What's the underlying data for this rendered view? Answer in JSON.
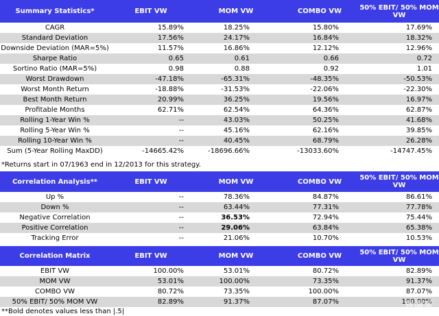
{
  "summary": {
    "headers": [
      "Summary Statistics*",
      "EBIT VW",
      "MOM VW",
      "COMBO VW",
      "50% EBIT/ 50% MOM VW"
    ],
    "rows": [
      {
        "label": "CAGR",
        "v": [
          "15.89%",
          "18.25%",
          "15.80%",
          "17.69%"
        ]
      },
      {
        "label": "Standard Deviation",
        "v": [
          "17.56%",
          "24.17%",
          "16.84%",
          "18.32%"
        ]
      },
      {
        "label": "Downside Deviation (MAR=5%)",
        "v": [
          "11.57%",
          "16.86%",
          "12.12%",
          "12.96%"
        ]
      },
      {
        "label": "Sharpe Ratio",
        "v": [
          "0.65",
          "0.61",
          "0.66",
          "0.72"
        ]
      },
      {
        "label": "Sortino Ratio (MAR=5%)",
        "v": [
          "0.98",
          "0.88",
          "0.92",
          "1.01"
        ]
      },
      {
        "label": "Worst Drawdown",
        "v": [
          "-47.18%",
          "-65.31%",
          "-48.35%",
          "-50.53%"
        ]
      },
      {
        "label": "Worst Month Return",
        "v": [
          "-18.88%",
          "-31.53%",
          "-22.06%",
          "-22.30%"
        ]
      },
      {
        "label": "Best Month Return",
        "v": [
          "20.99%",
          "36.25%",
          "19.56%",
          "16.97%"
        ]
      },
      {
        "label": "Profitable Months",
        "v": [
          "62.71%",
          "62.54%",
          "64.36%",
          "62.87%"
        ]
      },
      {
        "label": "Rolling 1-Year Win %",
        "v": [
          "--",
          "43.03%",
          "50.25%",
          "41.68%"
        ]
      },
      {
        "label": "Rolling 5-Year Win %",
        "v": [
          "--",
          "45.16%",
          "62.16%",
          "39.85%"
        ]
      },
      {
        "label": "Rolling 10-Year Win %",
        "v": [
          "--",
          "40.45%",
          "68.79%",
          "26.28%"
        ]
      },
      {
        "label": "Sum (5-Year Rolling MaxDD)",
        "v": [
          "-14665.42%",
          "-18696.66%",
          "-13033.60%",
          "-14747.45%"
        ]
      }
    ],
    "note": "*Returns start in 07/1963 end in 12/2013 for this strategy."
  },
  "correlation": {
    "headers": [
      "Correlation Analysis**",
      "EBIT VW",
      "MOM VW",
      "COMBO VW",
      "50% EBIT/ 50% MOM VW"
    ],
    "rows": [
      {
        "label": "Up %",
        "v": [
          "--",
          "78.36%",
          "84.87%",
          "86.61%"
        ]
      },
      {
        "label": "Down %",
        "v": [
          "--",
          "63.44%",
          "77.31%",
          "77.78%"
        ]
      },
      {
        "label": "Negative Correlation",
        "v": [
          "--",
          "36.53%",
          "72.94%",
          "75.44%"
        ],
        "bold": [
          false,
          true,
          false,
          false
        ]
      },
      {
        "label": "Positive Correlation",
        "v": [
          "--",
          "29.06%",
          "63.84%",
          "65.38%"
        ],
        "bold": [
          false,
          true,
          false,
          false
        ]
      },
      {
        "label": "Tracking Error",
        "v": [
          "--",
          "21.06%",
          "10.70%",
          "10.53%"
        ]
      }
    ]
  },
  "matrix": {
    "headers": [
      "Correlation Matrix",
      "EBIT VW",
      "MOM VW",
      "COMBO VW",
      "50% EBIT/ 50% MOM VW"
    ],
    "rows": [
      {
        "label": "EBIT VW",
        "v": [
          "100.00%",
          "53.01%",
          "80.72%",
          "82.89%"
        ]
      },
      {
        "label": "MOM VW",
        "v": [
          "53.01%",
          "100.00%",
          "73.35%",
          "91.37%"
        ]
      },
      {
        "label": "COMBO VW",
        "v": [
          "80.72%",
          "73.35%",
          "100.00%",
          "87.07%"
        ]
      },
      {
        "label": "50% EBIT/ 50% MOM VW",
        "v": [
          "82.89%",
          "91.37%",
          "87.07%",
          "100.00%"
        ]
      }
    ],
    "note": "**Bold denotes values less than |.5|"
  },
  "watermark": "覺醒家"
}
